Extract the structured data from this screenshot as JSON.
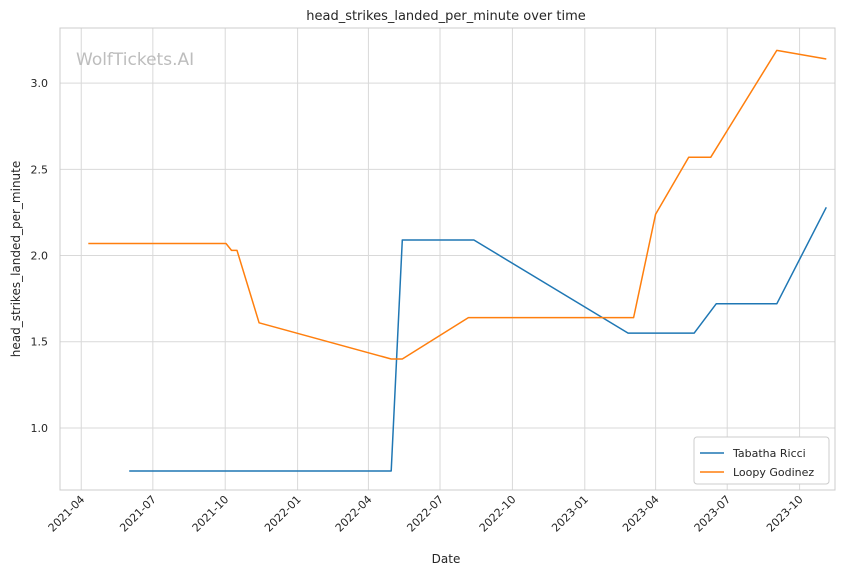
{
  "watermark": "WolfTickets.AI",
  "chart_data": {
    "type": "line",
    "title": "head_strikes_landed_per_minute over time",
    "xlabel": "Date",
    "ylabel": "head_strikes_landed_per_minute",
    "x_ticks": [
      "2021-04",
      "2021-07",
      "2021-10",
      "2022-01",
      "2022-04",
      "2022-07",
      "2022-10",
      "2023-01",
      "2023-04",
      "2023-07",
      "2023-10"
    ],
    "y_ticks": [
      "1.0",
      "1.5",
      "2.0",
      "2.5",
      "3.0"
    ],
    "xlim": [
      "2021-03-05",
      "2023-11-15"
    ],
    "ylim": [
      0.64,
      3.32
    ],
    "grid": true,
    "legend_position": "lower-right",
    "series": [
      {
        "name": "Tabatha Ricci",
        "color": "#1f77b4",
        "points": [
          [
            "2021-06-01",
            0.75
          ],
          [
            "2022-04-30",
            0.75
          ],
          [
            "2022-05-14",
            2.09
          ],
          [
            "2022-08-13",
            2.09
          ],
          [
            "2023-02-25",
            1.55
          ],
          [
            "2023-05-20",
            1.55
          ],
          [
            "2023-06-17",
            1.72
          ],
          [
            "2023-09-02",
            1.72
          ],
          [
            "2023-11-04",
            2.28
          ]
        ]
      },
      {
        "name": "Loopy Godinez",
        "color": "#ff7f0e",
        "points": [
          [
            "2021-04-10",
            2.07
          ],
          [
            "2021-10-02",
            2.07
          ],
          [
            "2021-10-09",
            2.03
          ],
          [
            "2021-10-16",
            2.03
          ],
          [
            "2021-11-13",
            1.61
          ],
          [
            "2022-04-30",
            1.4
          ],
          [
            "2022-05-14",
            1.4
          ],
          [
            "2022-08-06",
            1.64
          ],
          [
            "2023-03-04",
            1.64
          ],
          [
            "2023-04-01",
            2.24
          ],
          [
            "2023-05-13",
            2.57
          ],
          [
            "2023-06-10",
            2.57
          ],
          [
            "2023-09-02",
            3.19
          ],
          [
            "2023-11-04",
            3.14
          ]
        ]
      }
    ]
  }
}
